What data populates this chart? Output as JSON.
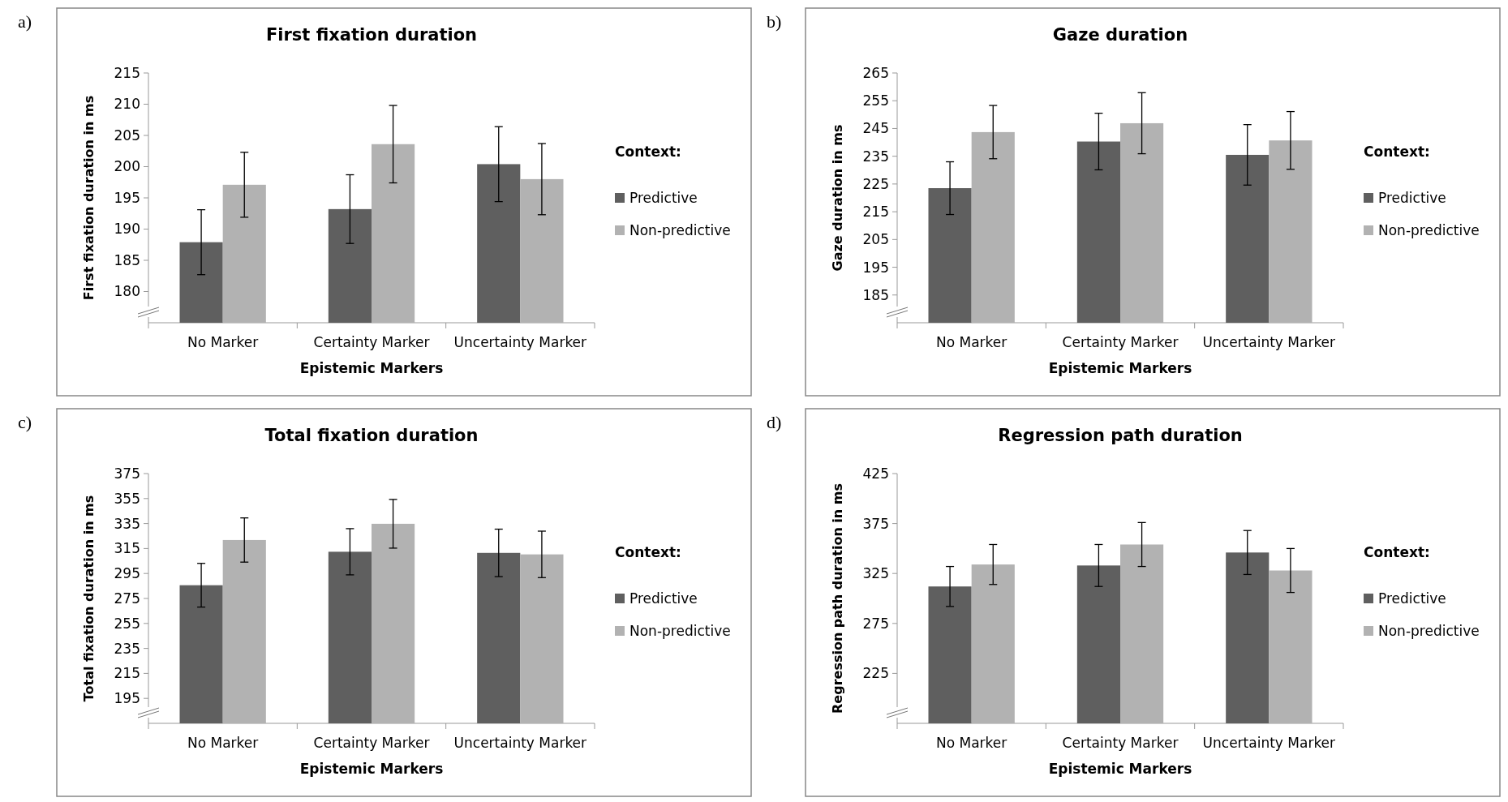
{
  "chart_data": [
    {
      "type": "bar",
      "title": "First fixation duration",
      "xlabel": "Epistemic Markers",
      "ylabel": "First fixation duration in ms",
      "legend_title": "Context:",
      "legend": "right",
      "annotations": [
        "a)"
      ],
      "categories": [
        "No Marker",
        "Certainty Marker",
        "Uncertainty Marker"
      ],
      "ylim": [
        175,
        215
      ],
      "yticks": [
        180,
        185,
        190,
        195,
        200,
        205,
        210,
        215
      ],
      "series": [
        {
          "name": "Predictive",
          "color": "#5f5f5f",
          "values": [
            187.9,
            193.2,
            200.4
          ],
          "errors": [
            5.2,
            5.5,
            6
          ]
        },
        {
          "name": "Non-predictive",
          "color": "#b2b2b2",
          "values": [
            197.1,
            203.6,
            198.0
          ],
          "errors": [
            5.2,
            6.2,
            5.7
          ]
        }
      ]
    },
    {
      "type": "bar",
      "title": "Gaze duration",
      "xlabel": "Epistemic Markers",
      "ylabel": "Gaze duration in ms",
      "legend_title": "Context:",
      "legend": "right",
      "annotations": [
        "b)"
      ],
      "categories": [
        "No Marker",
        "Certainty Marker",
        "Uncertainty Marker"
      ],
      "ylim": [
        175,
        265
      ],
      "yticks": [
        185,
        195,
        205,
        215,
        225,
        235,
        245,
        255,
        265
      ],
      "series": [
        {
          "name": "Predictive",
          "color": "#5f5f5f",
          "values": [
            223.5,
            240.3,
            235.5
          ],
          "errors": [
            9.5,
            10.2,
            10.9
          ]
        },
        {
          "name": "Non-predictive",
          "color": "#b2b2b2",
          "values": [
            243.7,
            246.9,
            240.7
          ],
          "errors": [
            9.6,
            11,
            10.4
          ]
        }
      ]
    },
    {
      "type": "bar",
      "title": "Total fixation duration",
      "xlabel": "Epistemic Markers",
      "ylabel": "Total fixation duration in ms",
      "legend_title": "Context:",
      "legend": "right",
      "annotations": [
        "c)"
      ],
      "categories": [
        "No Marker",
        "Certainty Marker",
        "Uncertainty Marker"
      ],
      "ylim": [
        175,
        375
      ],
      "yticks": [
        195,
        215,
        235,
        255,
        275,
        295,
        315,
        335,
        355,
        375
      ],
      "series": [
        {
          "name": "Predictive",
          "color": "#5f5f5f",
          "values": [
            285.6,
            312.4,
            311.5
          ],
          "errors": [
            17.5,
            18.5,
            19
          ]
        },
        {
          "name": "Non-predictive",
          "color": "#b2b2b2",
          "values": [
            321.8,
            334.8,
            310.3
          ],
          "errors": [
            17.7,
            19.5,
            18.6
          ]
        }
      ]
    },
    {
      "type": "bar",
      "title": "Regression path duration",
      "xlabel": "Epistemic Markers",
      "ylabel": "Regression path duration in ms",
      "legend_title": "Context:",
      "legend": "right",
      "annotations": [
        "d)"
      ],
      "categories": [
        "No Marker",
        "Certainty Marker",
        "Uncertainty Marker"
      ],
      "ylim": [
        175,
        425
      ],
      "yticks": [
        225,
        275,
        325,
        375,
        425
      ],
      "series": [
        {
          "name": "Predictive",
          "color": "#5f5f5f",
          "values": [
            312,
            333,
            346
          ],
          "errors": [
            20,
            21,
            22
          ]
        },
        {
          "name": "Non-predictive",
          "color": "#b2b2b2",
          "values": [
            334,
            354,
            328
          ],
          "errors": [
            20,
            22,
            22
          ]
        }
      ]
    }
  ]
}
